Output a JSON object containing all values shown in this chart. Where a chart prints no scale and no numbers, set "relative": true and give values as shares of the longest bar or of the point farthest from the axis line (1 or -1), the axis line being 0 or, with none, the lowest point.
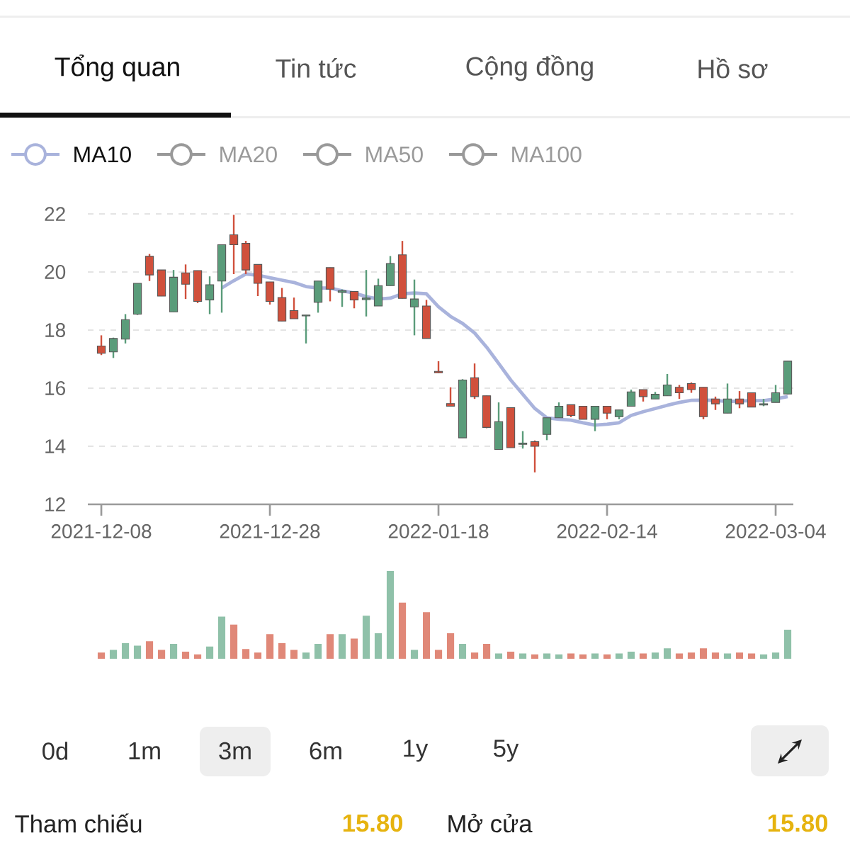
{
  "chart_data": [
    {
      "type": "candlestick",
      "categories": [
        "2021-12-08",
        null,
        null,
        null,
        null,
        null,
        null,
        null,
        null,
        null,
        null,
        null,
        null,
        null,
        "2021-12-28",
        null,
        null,
        null,
        null,
        null,
        null,
        null,
        null,
        null,
        null,
        null,
        null,
        null,
        "2022-01-18",
        null,
        null,
        null,
        null,
        null,
        null,
        null,
        null,
        null,
        null,
        null,
        null,
        null,
        "2022-02-14",
        null,
        null,
        null,
        null,
        null,
        null,
        null,
        null,
        null,
        null,
        null,
        null,
        null,
        "2022-03-04",
        null
      ],
      "ohlc": [
        [
          17.45,
          17.82,
          17.14,
          17.2
        ],
        [
          17.25,
          17.74,
          17.04,
          17.71
        ],
        [
          17.69,
          18.55,
          17.54,
          18.36
        ],
        [
          18.55,
          19.61,
          18.52,
          19.61
        ],
        [
          20.54,
          20.62,
          19.69,
          19.9
        ],
        [
          20.07,
          20.07,
          19.17,
          19.17
        ],
        [
          18.63,
          20.07,
          18.63,
          19.82
        ],
        [
          19.97,
          20.26,
          19.07,
          19.58
        ],
        [
          20.05,
          20.05,
          18.93,
          18.99
        ],
        [
          19.04,
          19.85,
          18.55,
          19.56
        ],
        [
          19.69,
          20.94,
          18.6,
          20.94
        ],
        [
          21.28,
          21.97,
          19.93,
          20.94
        ],
        [
          20.99,
          21.07,
          19.93,
          20.07
        ],
        [
          20.26,
          20.26,
          19.17,
          19.61
        ],
        [
          19.66,
          19.66,
          18.88,
          18.99
        ],
        [
          19.12,
          19.45,
          18.31,
          18.31
        ],
        [
          18.67,
          19.12,
          18.39,
          18.39
        ],
        [
          18.49,
          18.52,
          17.54,
          18.52
        ],
        [
          18.96,
          19.69,
          18.6,
          19.69
        ],
        [
          20.15,
          20.15,
          18.99,
          19.41
        ],
        [
          19.3,
          19.4,
          18.8,
          19.35
        ],
        [
          19.33,
          19.33,
          18.75,
          19.04
        ],
        [
          19.05,
          20.07,
          18.47,
          19.1
        ],
        [
          18.83,
          19.77,
          18.83,
          19.53
        ],
        [
          19.53,
          20.55,
          19.53,
          20.29
        ],
        [
          20.59,
          21.07,
          19.09,
          19.09
        ],
        [
          18.8,
          19.74,
          17.82,
          19.07
        ],
        [
          18.83,
          19.04,
          17.71,
          17.71
        ],
        [
          16.58,
          16.93,
          16.52,
          16.53
        ],
        [
          15.47,
          16.03,
          15.38,
          15.38
        ],
        [
          14.29,
          16.31,
          14.29,
          16.28
        ],
        [
          16.36,
          16.85,
          15.63,
          15.71
        ],
        [
          15.74,
          15.74,
          14.62,
          14.65
        ],
        [
          13.89,
          15.51,
          13.89,
          14.85
        ],
        [
          15.33,
          15.33,
          13.95,
          13.95
        ],
        [
          14.07,
          14.52,
          13.92,
          14.11
        ],
        [
          14.16,
          14.2,
          13.1,
          14.0
        ],
        [
          14.41,
          14.98,
          14.21,
          14.98
        ],
        [
          14.98,
          15.51,
          14.98,
          15.38
        ],
        [
          15.43,
          15.43,
          15.0,
          15.06
        ],
        [
          15.38,
          15.38,
          14.93,
          14.93
        ],
        [
          14.93,
          15.38,
          14.52,
          15.38
        ],
        [
          15.38,
          15.38,
          14.93,
          15.14
        ],
        [
          15.02,
          15.25,
          14.93,
          15.25
        ],
        [
          15.38,
          15.95,
          15.38,
          15.87
        ],
        [
          15.95,
          15.95,
          15.54,
          15.71
        ],
        [
          15.63,
          15.87,
          15.63,
          15.79
        ],
        [
          15.74,
          16.49,
          15.74,
          16.11
        ],
        [
          16.03,
          16.11,
          15.63,
          15.84
        ],
        [
          16.16,
          16.2,
          15.84,
          15.95
        ],
        [
          16.03,
          16.03,
          14.93,
          15.02
        ],
        [
          15.63,
          15.71,
          15.25,
          15.46
        ],
        [
          15.14,
          16.16,
          15.14,
          15.63
        ],
        [
          15.63,
          15.9,
          15.31,
          15.46
        ],
        [
          15.84,
          15.84,
          15.35,
          15.35
        ],
        [
          15.42,
          15.63,
          15.38,
          15.46
        ],
        [
          15.51,
          16.11,
          15.51,
          15.84
        ],
        [
          15.8,
          16.93,
          15.79,
          16.93
        ]
      ],
      "colors": [
        "#d0503c",
        "#5a9c7a",
        "#5a9c7a",
        "#5a9c7a",
        "#d0503c",
        "#d0503c",
        "#5a9c7a",
        "#d0503c",
        "#d0503c",
        "#5a9c7a",
        "#5a9c7a",
        "#d0503c",
        "#d0503c",
        "#d0503c",
        "#d0503c",
        "#d0503c",
        "#d0503c",
        "#5a9c7a",
        "#5a9c7a",
        "#d0503c",
        "#5a9c7a",
        "#d0503c",
        "#5a9c7a",
        "#5a9c7a",
        "#5a9c7a",
        "#d0503c",
        "#5a9c7a",
        "#d0503c",
        "#d0503c",
        "#d0503c",
        "#5a9c7a",
        "#d0503c",
        "#d0503c",
        "#5a9c7a",
        "#d0503c",
        "#5a9c7a",
        "#d0503c",
        "#5a9c7a",
        "#5a9c7a",
        "#d0503c",
        "#d0503c",
        "#5a9c7a",
        "#d0503c",
        "#5a9c7a",
        "#5a9c7a",
        "#d0503c",
        "#5a9c7a",
        "#5a9c7a",
        "#d0503c",
        "#d0503c",
        "#d0503c",
        "#d0503c",
        "#5a9c7a",
        "#d0503c",
        "#d0503c",
        "#5a9c7a",
        "#5a9c7a",
        "#5a9c7a"
      ],
      "series": [
        {
          "name": "MA10",
          "type": "line",
          "color": "#a9b3dc",
          "values": [
            null,
            null,
            null,
            null,
            null,
            null,
            null,
            null,
            null,
            null,
            19.45,
            19.7,
            19.93,
            19.89,
            19.8,
            19.72,
            19.64,
            19.5,
            19.45,
            19.45,
            19.35,
            19.28,
            19.15,
            19.07,
            19.1,
            19.25,
            19.28,
            19.25,
            18.8,
            18.47,
            18.23,
            17.9,
            17.41,
            16.85,
            16.28,
            15.79,
            15.3,
            14.98,
            14.93,
            14.9,
            14.81,
            14.73,
            14.76,
            14.81,
            15.06,
            15.19,
            15.3,
            15.41,
            15.51,
            15.58,
            15.59,
            15.58,
            15.54,
            15.56,
            15.57,
            15.57,
            15.63,
            15.71
          ]
        },
        {
          "name": "MA20",
          "type": "line",
          "color": "#999999",
          "values": [
            null,
            null,
            null,
            null,
            null,
            null,
            null,
            null,
            null,
            null,
            null,
            null,
            null,
            null,
            null,
            null,
            null,
            null,
            null,
            null,
            null,
            null,
            null,
            null,
            null,
            null,
            null,
            null,
            null,
            null,
            null,
            null,
            null,
            null,
            null,
            null,
            null,
            null,
            null,
            null,
            null,
            null,
            null,
            null,
            null,
            null,
            null,
            null,
            null,
            null,
            null,
            null,
            null,
            null,
            null,
            null,
            null,
            null
          ]
        },
        {
          "name": "MA50",
          "type": "line",
          "color": "#999999",
          "values": [
            null,
            null,
            null,
            null,
            null,
            null,
            null,
            null,
            null,
            null,
            null,
            null,
            null,
            null,
            null,
            null,
            null,
            null,
            null,
            null,
            null,
            null,
            null,
            null,
            null,
            null,
            null,
            null,
            null,
            null,
            null,
            null,
            null,
            null,
            null,
            null,
            null,
            null,
            null,
            null,
            null,
            null,
            null,
            null,
            null,
            null,
            null,
            null,
            null,
            null,
            null,
            null,
            null,
            null,
            null,
            null,
            null,
            null
          ]
        },
        {
          "name": "MA100",
          "type": "line",
          "color": "#999999",
          "values": [
            null,
            null,
            null,
            null,
            null,
            null,
            null,
            null,
            null,
            null,
            null,
            null,
            null,
            null,
            null,
            null,
            null,
            null,
            null,
            null,
            null,
            null,
            null,
            null,
            null,
            null,
            null,
            null,
            null,
            null,
            null,
            null,
            null,
            null,
            null,
            null,
            null,
            null,
            null,
            null,
            null,
            null,
            null,
            null,
            null,
            null,
            null,
            null,
            null,
            null,
            null,
            null,
            null,
            null,
            null,
            null,
            null,
            null
          ]
        }
      ],
      "ylim": [
        12,
        22
      ],
      "yticks": [
        12,
        14,
        16,
        18,
        20,
        22
      ],
      "grid": "y",
      "legend": "top left",
      "annotations": [
        "Tổng quan",
        "Tin tức",
        "Cộng đồng",
        "Hồ sơ",
        "0d",
        "1m",
        "3m",
        "6m",
        "1y",
        "5y",
        "Tham chiếu",
        "15.80",
        "Mở cửa",
        "15.80"
      ]
    },
    {
      "type": "bar",
      "relative": true,
      "categories": [
        null,
        null,
        null,
        null,
        null,
        null,
        null,
        null,
        null,
        null,
        null,
        null,
        null,
        null,
        null,
        null,
        null,
        null,
        null,
        null,
        null,
        null,
        null,
        null,
        null,
        null,
        null,
        null,
        null,
        null,
        null,
        null,
        null,
        null,
        null,
        null,
        null,
        null,
        null,
        null,
        null,
        null,
        null,
        null,
        null,
        null,
        null,
        null,
        null,
        null,
        null,
        null,
        null,
        null,
        null,
        null,
        null,
        null
      ],
      "values": [
        0.07,
        0.1,
        0.18,
        0.15,
        0.2,
        0.1,
        0.17,
        0.08,
        0.05,
        0.14,
        0.48,
        0.39,
        0.11,
        0.07,
        0.28,
        0.18,
        0.1,
        0.07,
        0.17,
        0.28,
        0.28,
        0.23,
        0.49,
        0.29,
        1,
        0.64,
        0.1,
        0.53,
        0.1,
        0.29,
        0.17,
        0.07,
        0.17,
        0.06,
        0.08,
        0.06,
        0.05,
        0.06,
        0.05,
        0.06,
        0.05,
        0.06,
        0.05,
        0.06,
        0.08,
        0.06,
        0.07,
        0.12,
        0.06,
        0.07,
        0.12,
        0.07,
        0.06,
        0.07,
        0.06,
        0.05,
        0.07,
        0.33
      ],
      "colors": [
        "#e08878",
        "#8fc1a9",
        "#8fc1a9",
        "#8fc1a9",
        "#e08878",
        "#e08878",
        "#8fc1a9",
        "#e08878",
        "#e08878",
        "#8fc1a9",
        "#8fc1a9",
        "#e08878",
        "#e08878",
        "#e08878",
        "#e08878",
        "#e08878",
        "#e08878",
        "#8fc1a9",
        "#8fc1a9",
        "#e08878",
        "#8fc1a9",
        "#e08878",
        "#8fc1a9",
        "#8fc1a9",
        "#8fc1a9",
        "#e08878",
        "#8fc1a9",
        "#e08878",
        "#e08878",
        "#e08878",
        "#8fc1a9",
        "#e08878",
        "#e08878",
        "#8fc1a9",
        "#e08878",
        "#8fc1a9",
        "#e08878",
        "#8fc1a9",
        "#8fc1a9",
        "#e08878",
        "#e08878",
        "#8fc1a9",
        "#e08878",
        "#8fc1a9",
        "#8fc1a9",
        "#e08878",
        "#8fc1a9",
        "#8fc1a9",
        "#e08878",
        "#e08878",
        "#e08878",
        "#e08878",
        "#8fc1a9",
        "#e08878",
        "#e08878",
        "#8fc1a9",
        "#8fc1a9",
        "#8fc1a9"
      ]
    }
  ]
}
